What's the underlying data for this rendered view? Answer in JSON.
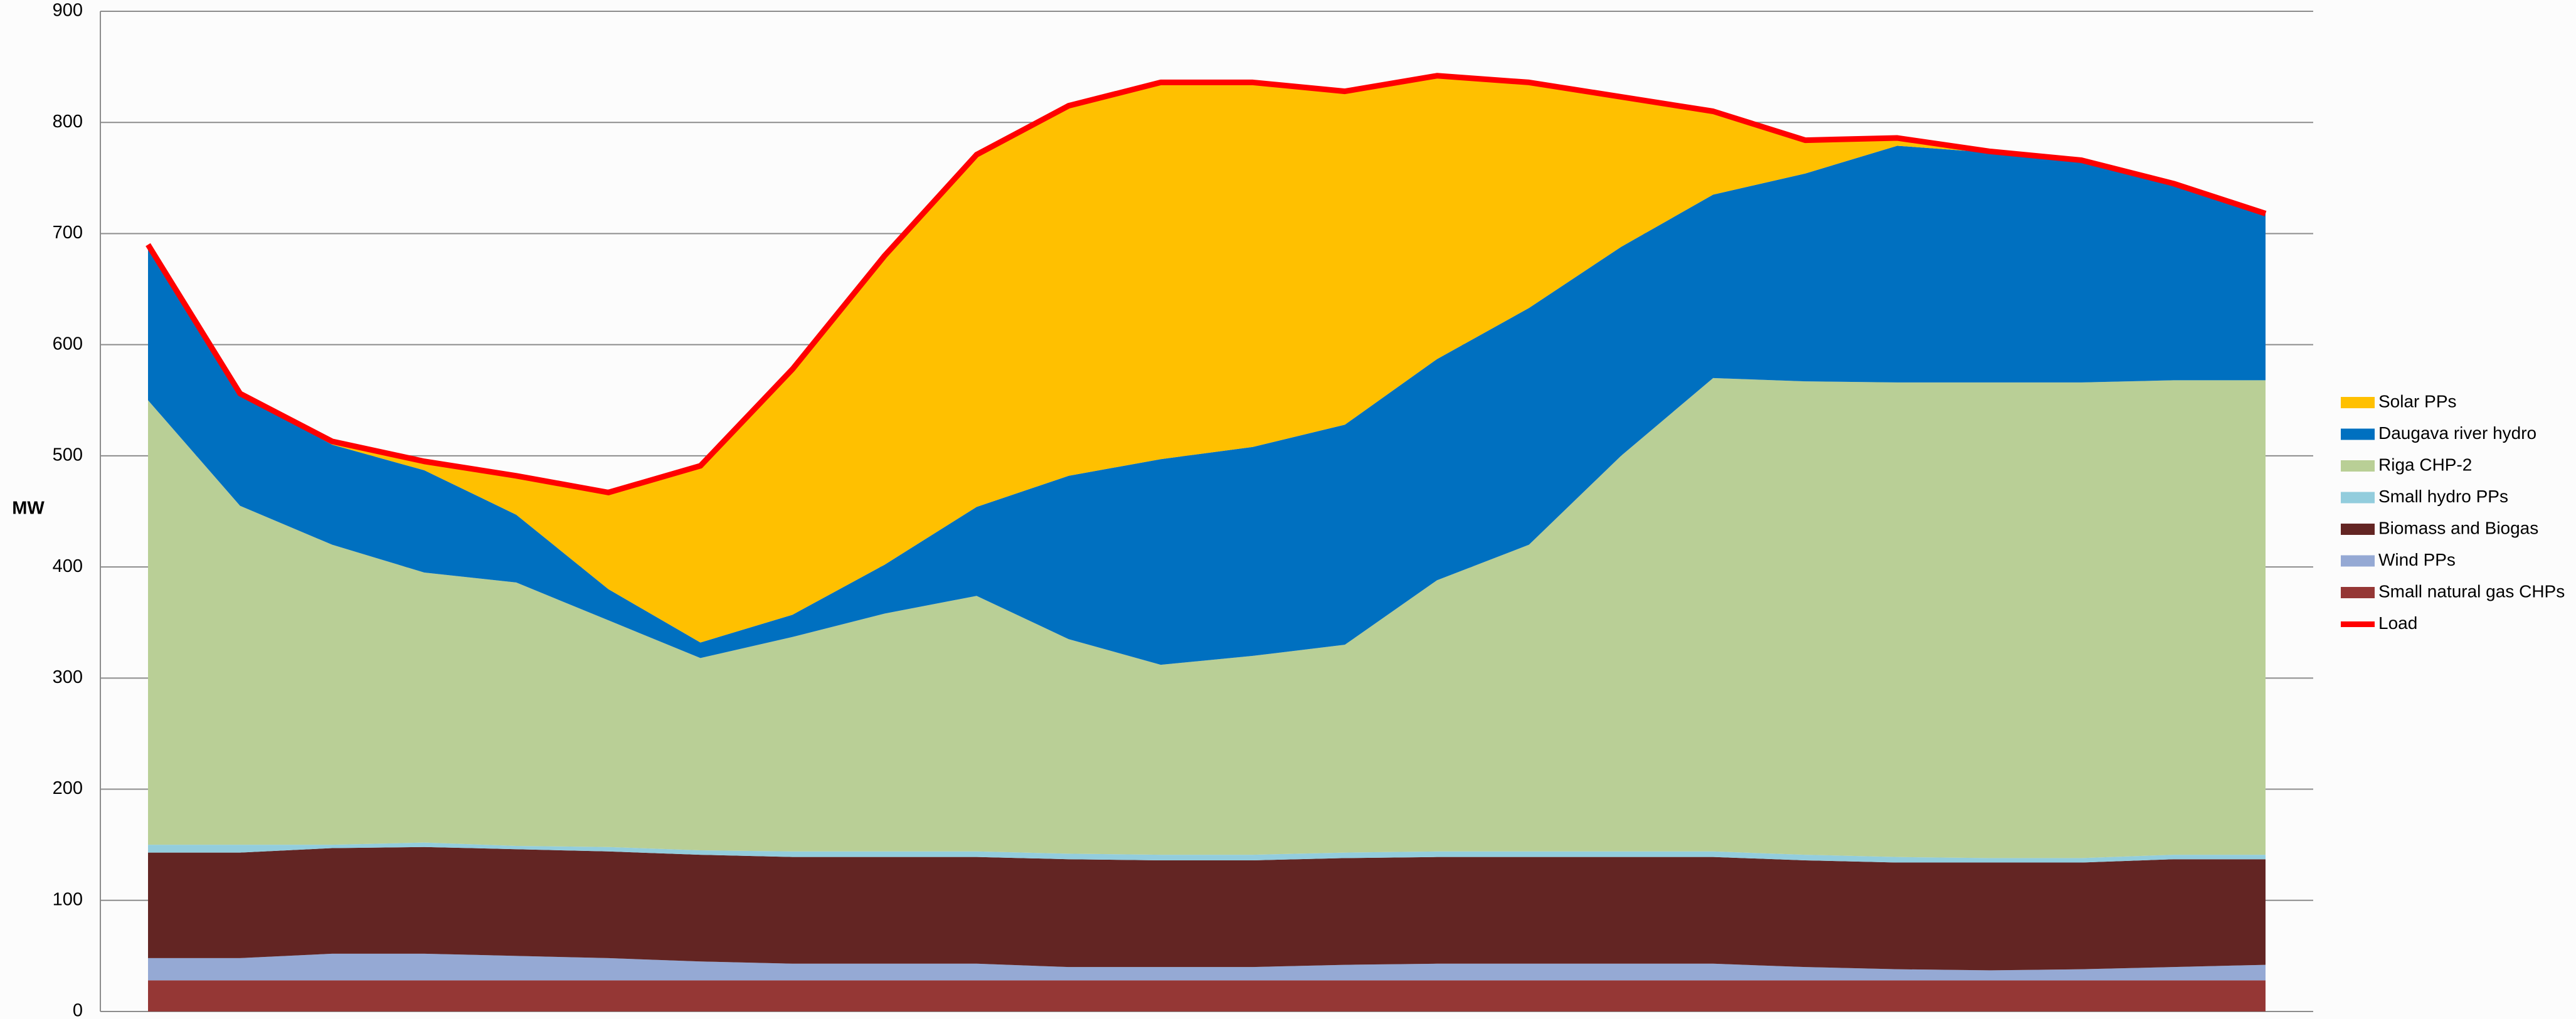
{
  "chart_data": {
    "type": "area",
    "y_label": "MW",
    "categories": [
      null,
      null,
      null,
      null,
      null,
      null,
      null,
      null,
      null,
      null,
      null,
      null,
      null,
      null,
      null,
      null,
      null,
      null,
      null,
      null,
      null,
      null,
      null,
      null
    ],
    "ylim": [
      0,
      900
    ],
    "yticks": [
      0,
      100,
      200,
      300,
      400,
      500,
      600,
      700,
      800,
      900
    ],
    "grid": true,
    "stacked": true,
    "legend": "right",
    "series": [
      {
        "name": "Small natural gas CHPs",
        "type": "area",
        "color": "#953735",
        "values": [
          28,
          28,
          28,
          28,
          28,
          28,
          28,
          28,
          28,
          28,
          28,
          28,
          28,
          28,
          28,
          28,
          28,
          28,
          28,
          28,
          28,
          28,
          28,
          28
        ]
      },
      {
        "name": "Wind PPs",
        "type": "area",
        "color": "#95a9d4",
        "values": [
          20,
          20,
          24,
          24,
          22,
          20,
          17,
          15,
          15,
          15,
          12,
          12,
          12,
          14,
          15,
          15,
          15,
          15,
          12,
          10,
          9,
          10,
          12,
          14
        ]
      },
      {
        "name": "Biomass and Biogas",
        "type": "area",
        "color": "#632523",
        "values": [
          95,
          95,
          95,
          96,
          96,
          96,
          96,
          96,
          96,
          96,
          97,
          96,
          96,
          96,
          96,
          96,
          96,
          96,
          96,
          96,
          97,
          96,
          97,
          95
        ]
      },
      {
        "name": "Small hydro PPs",
        "type": "area",
        "color": "#93cddd",
        "values": [
          7,
          7,
          3,
          4,
          3,
          4,
          4,
          5,
          5,
          5,
          5,
          5,
          5,
          5,
          5,
          5,
          5,
          5,
          5,
          5,
          4,
          4,
          4,
          4
        ]
      },
      {
        "name": "Riga CHP-2",
        "type": "area",
        "color": "#b9cf96",
        "values": [
          400,
          305,
          270,
          243,
          237,
          204,
          173,
          193,
          214,
          230,
          193,
          171,
          179,
          187,
          244,
          276,
          356,
          426,
          426,
          427,
          428,
          428,
          427,
          427
        ]
      },
      {
        "name": "Daugava river hydro",
        "type": "area",
        "color": "#0070c0",
        "values": [
          140,
          100,
          90,
          92,
          61,
          28,
          14,
          20,
          44,
          80,
          147,
          185,
          188,
          198,
          199,
          213,
          188,
          165,
          187,
          213,
          207,
          199,
          177,
          150
        ]
      },
      {
        "name": "Solar PPs",
        "type": "area",
        "color": "#ffc000",
        "values": [
          0,
          1,
          3,
          8,
          35,
          87,
          159,
          221,
          278,
          317,
          333,
          339,
          328,
          300,
          255,
          203,
          135,
          75,
          30,
          7,
          1,
          1,
          0,
          0
        ]
      },
      {
        "name": "Load",
        "type": "line",
        "color": "#ff0000",
        "values": [
          690,
          556,
          513,
          495,
          482,
          467,
          491,
          578,
          680,
          771,
          815,
          836,
          836,
          828,
          842,
          836,
          823,
          810,
          784,
          786,
          774,
          766,
          745,
          718
        ]
      }
    ]
  }
}
